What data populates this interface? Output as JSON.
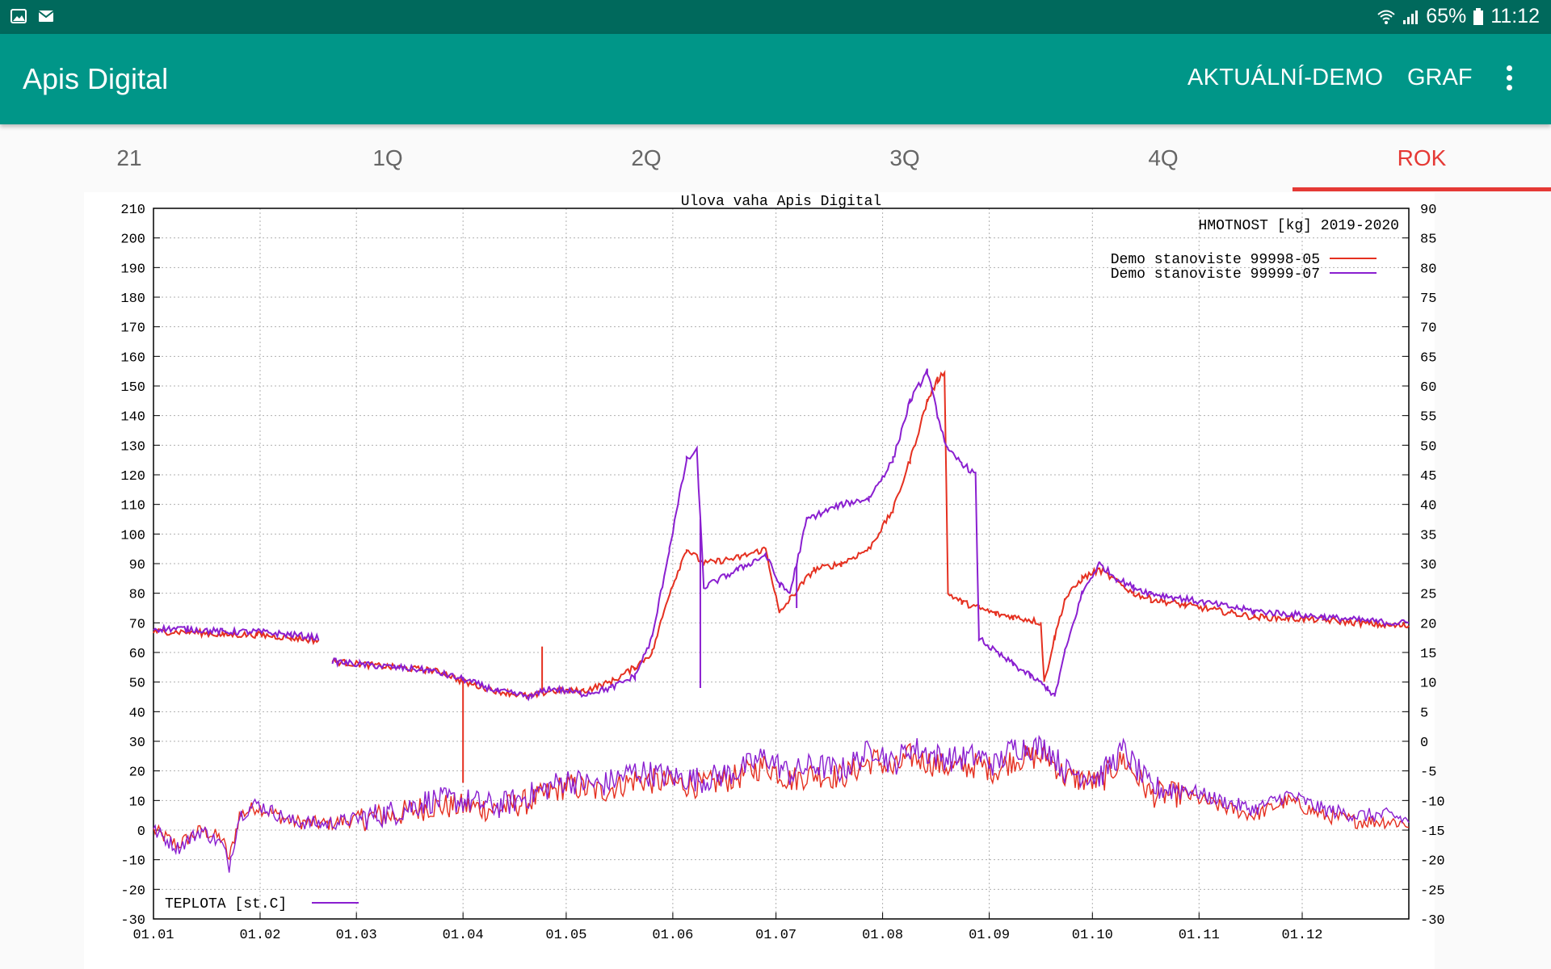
{
  "status_bar": {
    "left_icons": [
      "image-icon",
      "mail-icon"
    ],
    "battery": "65%",
    "time": "11:12",
    "right_icons": [
      "wifi-icon",
      "signal-icon",
      "battery-icon"
    ]
  },
  "app_bar": {
    "title": "Apis Digital",
    "actions": [
      "AKTUÁLNÍ-DEMO",
      "GRAF"
    ],
    "overflow_icon": "more-vert-icon",
    "color": "#009688"
  },
  "tabs": {
    "items": [
      "21",
      "1Q",
      "2Q",
      "3Q",
      "4Q",
      "ROK"
    ],
    "selected": "ROK",
    "accent": "#e53935"
  },
  "chart_data": {
    "type": "line",
    "title": "Ulova vaha Apis Digital",
    "subtitle": "HMOTNOST [kg] 2019-2020",
    "x_ticks": [
      "01.01",
      "01.02",
      "01.03",
      "01.04",
      "01.05",
      "01.06",
      "01.07",
      "01.08",
      "01.09",
      "01.10",
      "01.11",
      "01.12"
    ],
    "y_left": {
      "range": [
        -30,
        210
      ],
      "ticks": [
        -30,
        -20,
        -10,
        0,
        10,
        20,
        30,
        40,
        50,
        60,
        70,
        80,
        90,
        100,
        110,
        120,
        130,
        140,
        150,
        160,
        170,
        180,
        190,
        200,
        210
      ]
    },
    "y_right": {
      "range": [
        -30,
        90
      ],
      "ticks": [
        -30,
        -25,
        -20,
        -15,
        -10,
        -5,
        0,
        5,
        10,
        15,
        20,
        25,
        30,
        35,
        40,
        45,
        50,
        55,
        60,
        65,
        70,
        75,
        80,
        85,
        90
      ]
    },
    "grid": true,
    "legend_position": "top-right",
    "legend_temp_position": "bottom-left",
    "temperature_label": "TEPLOTA [st.C]",
    "series": [
      {
        "name": "Demo stanoviste 99998-05",
        "color": "#e53020",
        "weight_kg": [
          [
            0,
            67
          ],
          [
            10,
            67
          ],
          [
            20,
            66
          ],
          [
            30,
            66
          ],
          [
            40,
            65
          ],
          [
            48,
            64
          ],
          [
            49,
            null
          ],
          [
            52,
            57
          ],
          [
            60,
            56
          ],
          [
            70,
            55
          ],
          [
            80,
            54
          ],
          [
            85,
            53
          ],
          [
            90,
            50
          ],
          [
            100,
            47
          ],
          [
            110,
            45
          ],
          [
            115,
            47
          ],
          [
            125,
            47
          ],
          [
            133,
            50
          ],
          [
            140,
            55
          ],
          [
            145,
            60
          ],
          [
            150,
            80
          ],
          [
            155,
            95
          ],
          [
            160,
            90
          ],
          [
            170,
            92
          ],
          [
            178,
            95
          ],
          [
            182,
            73
          ],
          [
            185,
            78
          ],
          [
            192,
            88
          ],
          [
            200,
            90
          ],
          [
            208,
            95
          ],
          [
            215,
            108
          ],
          [
            220,
            125
          ],
          [
            225,
            145
          ],
          [
            228,
            152
          ],
          [
            230,
            155
          ],
          [
            231,
            80
          ],
          [
            235,
            77
          ],
          [
            240,
            75
          ],
          [
            245,
            73
          ],
          [
            250,
            72
          ],
          [
            255,
            71
          ],
          [
            258,
            70
          ],
          [
            259,
            50
          ],
          [
            262,
            65
          ],
          [
            265,
            78
          ],
          [
            270,
            85
          ],
          [
            275,
            88
          ],
          [
            280,
            84
          ],
          [
            285,
            80
          ],
          [
            290,
            78
          ],
          [
            300,
            76
          ],
          [
            320,
            72
          ],
          [
            340,
            71
          ],
          [
            360,
            69
          ],
          [
            365,
            69
          ]
        ],
        "spikes": [
          [
            90,
            16
          ],
          [
            113,
            62
          ]
        ],
        "temp_series_left_scale": [
          [
            0,
            0
          ],
          [
            7,
            -5
          ],
          [
            14,
            0
          ],
          [
            20,
            -3
          ],
          [
            22,
            -10
          ],
          [
            25,
            5
          ],
          [
            30,
            8
          ],
          [
            40,
            3
          ],
          [
            50,
            2
          ],
          [
            60,
            4
          ],
          [
            70,
            5
          ],
          [
            80,
            8
          ],
          [
            90,
            8
          ],
          [
            100,
            7
          ],
          [
            110,
            10
          ],
          [
            120,
            15
          ],
          [
            130,
            13
          ],
          [
            140,
            17
          ],
          [
            150,
            16
          ],
          [
            160,
            15
          ],
          [
            170,
            18
          ],
          [
            178,
            22
          ],
          [
            185,
            17
          ],
          [
            192,
            19
          ],
          [
            200,
            18
          ],
          [
            210,
            24
          ],
          [
            215,
            20
          ],
          [
            220,
            25
          ],
          [
            228,
            22
          ],
          [
            233,
            21
          ],
          [
            240,
            22
          ],
          [
            245,
            20
          ],
          [
            250,
            24
          ],
          [
            260,
            25
          ],
          [
            265,
            18
          ],
          [
            275,
            16
          ],
          [
            282,
            24
          ],
          [
            290,
            12
          ],
          [
            300,
            12
          ],
          [
            310,
            8
          ],
          [
            320,
            5
          ],
          [
            330,
            10
          ],
          [
            340,
            5
          ],
          [
            350,
            3
          ],
          [
            360,
            3
          ],
          [
            365,
            2
          ]
        ]
      },
      {
        "name": "Demo stanoviste 99999-07",
        "color": "#8a1fd0",
        "weight_kg": [
          [
            0,
            68
          ],
          [
            10,
            68
          ],
          [
            20,
            67
          ],
          [
            30,
            67
          ],
          [
            40,
            66
          ],
          [
            48,
            65
          ],
          [
            49,
            null
          ],
          [
            52,
            57
          ],
          [
            60,
            56
          ],
          [
            70,
            55
          ],
          [
            80,
            54
          ],
          [
            90,
            51
          ],
          [
            100,
            47
          ],
          [
            110,
            45
          ],
          [
            115,
            48
          ],
          [
            125,
            46
          ],
          [
            133,
            48
          ],
          [
            140,
            52
          ],
          [
            145,
            65
          ],
          [
            150,
            95
          ],
          [
            155,
            125
          ],
          [
            158,
            128
          ],
          [
            160,
            82
          ],
          [
            170,
            88
          ],
          [
            178,
            93
          ],
          [
            182,
            83
          ],
          [
            185,
            80
          ],
          [
            190,
            105
          ],
          [
            200,
            110
          ],
          [
            208,
            112
          ],
          [
            215,
            125
          ],
          [
            220,
            145
          ],
          [
            225,
            155
          ],
          [
            228,
            140
          ],
          [
            231,
            128
          ],
          [
            235,
            124
          ],
          [
            239,
            120
          ],
          [
            240,
            65
          ],
          [
            245,
            60
          ],
          [
            250,
            56
          ],
          [
            255,
            52
          ],
          [
            260,
            48
          ],
          [
            262,
            45
          ],
          [
            265,
            60
          ],
          [
            270,
            80
          ],
          [
            275,
            90
          ],
          [
            280,
            85
          ],
          [
            285,
            82
          ],
          [
            290,
            80
          ],
          [
            300,
            78
          ],
          [
            320,
            74
          ],
          [
            340,
            72
          ],
          [
            360,
            70
          ],
          [
            365,
            70
          ]
        ],
        "spikes": [
          [
            159,
            48
          ],
          [
            187,
            75
          ]
        ],
        "temp_series_left_scale": [
          [
            0,
            0
          ],
          [
            7,
            -6
          ],
          [
            14,
            0
          ],
          [
            20,
            -5
          ],
          [
            22,
            -12
          ],
          [
            25,
            5
          ],
          [
            30,
            9
          ],
          [
            40,
            3
          ],
          [
            50,
            2
          ],
          [
            60,
            4
          ],
          [
            70,
            6
          ],
          [
            80,
            10
          ],
          [
            90,
            10
          ],
          [
            100,
            8
          ],
          [
            110,
            12
          ],
          [
            120,
            17
          ],
          [
            130,
            15
          ],
          [
            140,
            20
          ],
          [
            150,
            18
          ],
          [
            160,
            17
          ],
          [
            170,
            20
          ],
          [
            178,
            25
          ],
          [
            185,
            19
          ],
          [
            192,
            22
          ],
          [
            200,
            20
          ],
          [
            210,
            28
          ],
          [
            215,
            22
          ],
          [
            220,
            28
          ],
          [
            228,
            25
          ],
          [
            233,
            24
          ],
          [
            240,
            25
          ],
          [
            245,
            22
          ],
          [
            250,
            28
          ],
          [
            260,
            28
          ],
          [
            265,
            20
          ],
          [
            275,
            18
          ],
          [
            282,
            27
          ],
          [
            290,
            14
          ],
          [
            300,
            14
          ],
          [
            310,
            10
          ],
          [
            320,
            7
          ],
          [
            330,
            12
          ],
          [
            340,
            7
          ],
          [
            350,
            5
          ],
          [
            360,
            5
          ],
          [
            365,
            3
          ]
        ]
      }
    ]
  }
}
